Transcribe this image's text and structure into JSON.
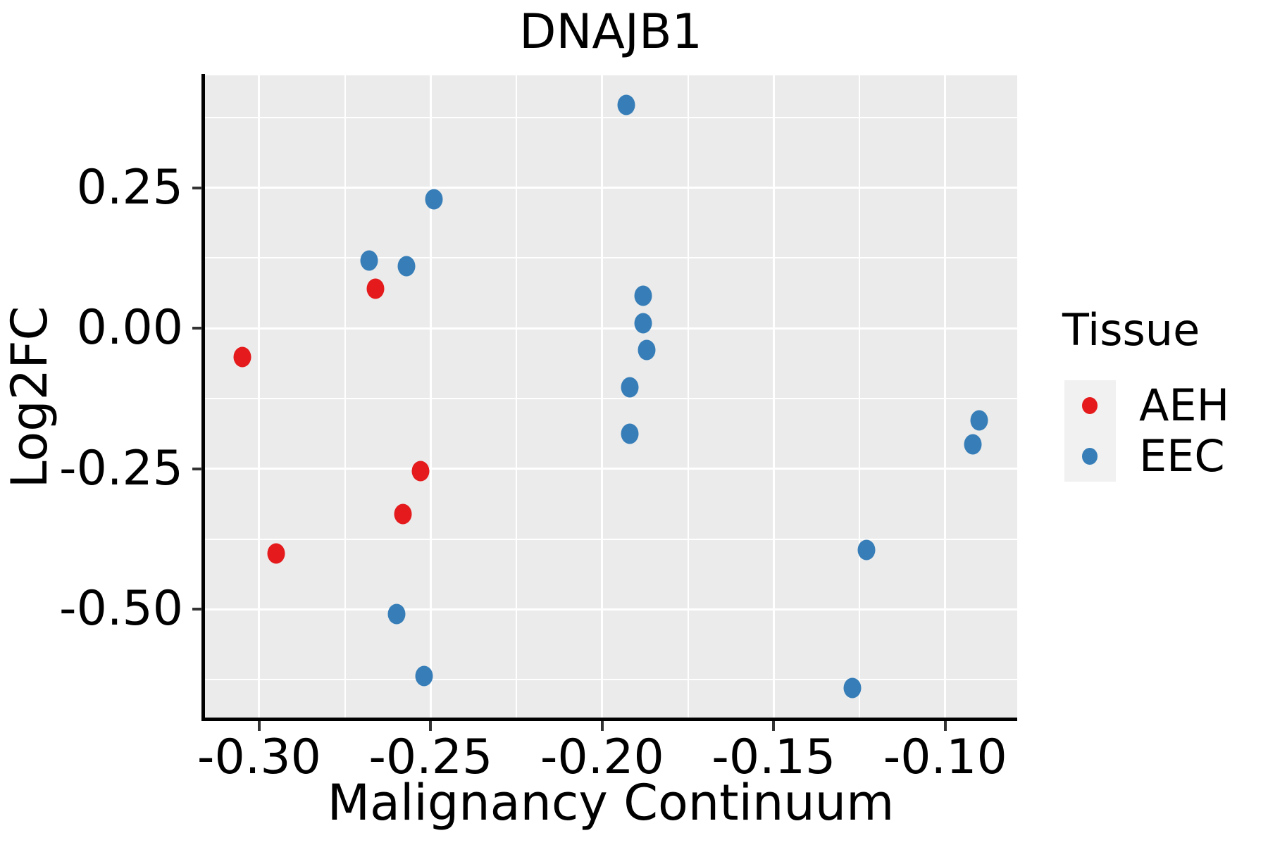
{
  "figure": {
    "title": "DNAJB1"
  },
  "axes": {
    "x": {
      "label": "Malignancy Continuum",
      "tick_labels": [
        "-0.30",
        "-0.25",
        "-0.20",
        "-0.15",
        "-0.10"
      ],
      "tick_values": [
        -0.3,
        -0.25,
        -0.2,
        -0.15,
        -0.1
      ],
      "minor_tick_values": [
        -0.275,
        -0.225,
        -0.175,
        -0.125
      ],
      "limits": [
        -0.316,
        -0.079
      ]
    },
    "y": {
      "label": "Log2FC",
      "tick_labels": [
        "0.25",
        "0.00",
        "-0.25",
        "-0.50"
      ],
      "tick_values": [
        0.25,
        0.0,
        -0.25,
        -0.5
      ],
      "minor_tick_values": [
        0.375,
        0.125,
        -0.125,
        -0.375,
        -0.625
      ],
      "limits": [
        -0.695,
        0.45
      ]
    }
  },
  "legend": {
    "title": "Tissue",
    "entries": [
      {
        "label": "AEH",
        "color": "#E41A1C"
      },
      {
        "label": "EEC",
        "color": "#377EB8"
      }
    ]
  },
  "style": {
    "panel_bg": "#EBEBEB",
    "grid_color": "#FFFFFF",
    "legend_key_bg": "#F1F1F1",
    "axis_color": "#000000",
    "text_color": "#000000"
  },
  "chart_data": {
    "type": "scatter",
    "title": "DNAJB1",
    "xlabel": "Malignancy Continuum",
    "ylabel": "Log2FC",
    "xlim": [
      -0.316,
      -0.079
    ],
    "ylim": [
      -0.695,
      0.45
    ],
    "grid": true,
    "legend_position": "right",
    "series": [
      {
        "name": "AEH",
        "color": "#E41A1C",
        "points": [
          [
            -0.305,
            -0.051
          ],
          [
            -0.295,
            -0.4
          ],
          [
            -0.266,
            0.071
          ],
          [
            -0.253,
            -0.254
          ],
          [
            -0.258,
            -0.33
          ]
        ]
      },
      {
        "name": "EEC",
        "color": "#377EB8",
        "points": [
          [
            -0.268,
            0.12
          ],
          [
            -0.257,
            0.11
          ],
          [
            -0.249,
            0.229
          ],
          [
            -0.26,
            -0.508
          ],
          [
            -0.252,
            -0.618
          ],
          [
            -0.193,
            0.398
          ],
          [
            -0.188,
            0.058
          ],
          [
            -0.188,
            0.009
          ],
          [
            -0.187,
            -0.038
          ],
          [
            -0.192,
            -0.105
          ],
          [
            -0.192,
            -0.188
          ],
          [
            -0.123,
            -0.394
          ],
          [
            -0.127,
            -0.64
          ],
          [
            -0.09,
            -0.164
          ],
          [
            -0.092,
            -0.206
          ]
        ]
      }
    ]
  }
}
